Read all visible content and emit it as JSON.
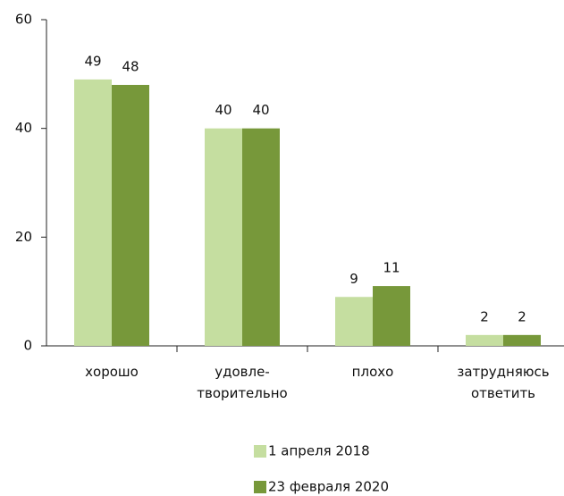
{
  "chart_data": {
    "type": "bar",
    "categories": [
      "хорошо",
      "удовле-\nтворительно",
      "плохо",
      "затрудняюсь\nответить"
    ],
    "series": [
      {
        "name": "1 апреля 2018",
        "color": "#c5dea0",
        "values": [
          49,
          40,
          9,
          2
        ]
      },
      {
        "name": "23 февраля 2020",
        "color": "#77983a",
        "values": [
          48,
          40,
          11,
          2
        ]
      }
    ],
    "ylim": [
      0,
      60
    ],
    "yticks": [
      0,
      20,
      40,
      60
    ],
    "grid": false,
    "legend": "bottom"
  }
}
